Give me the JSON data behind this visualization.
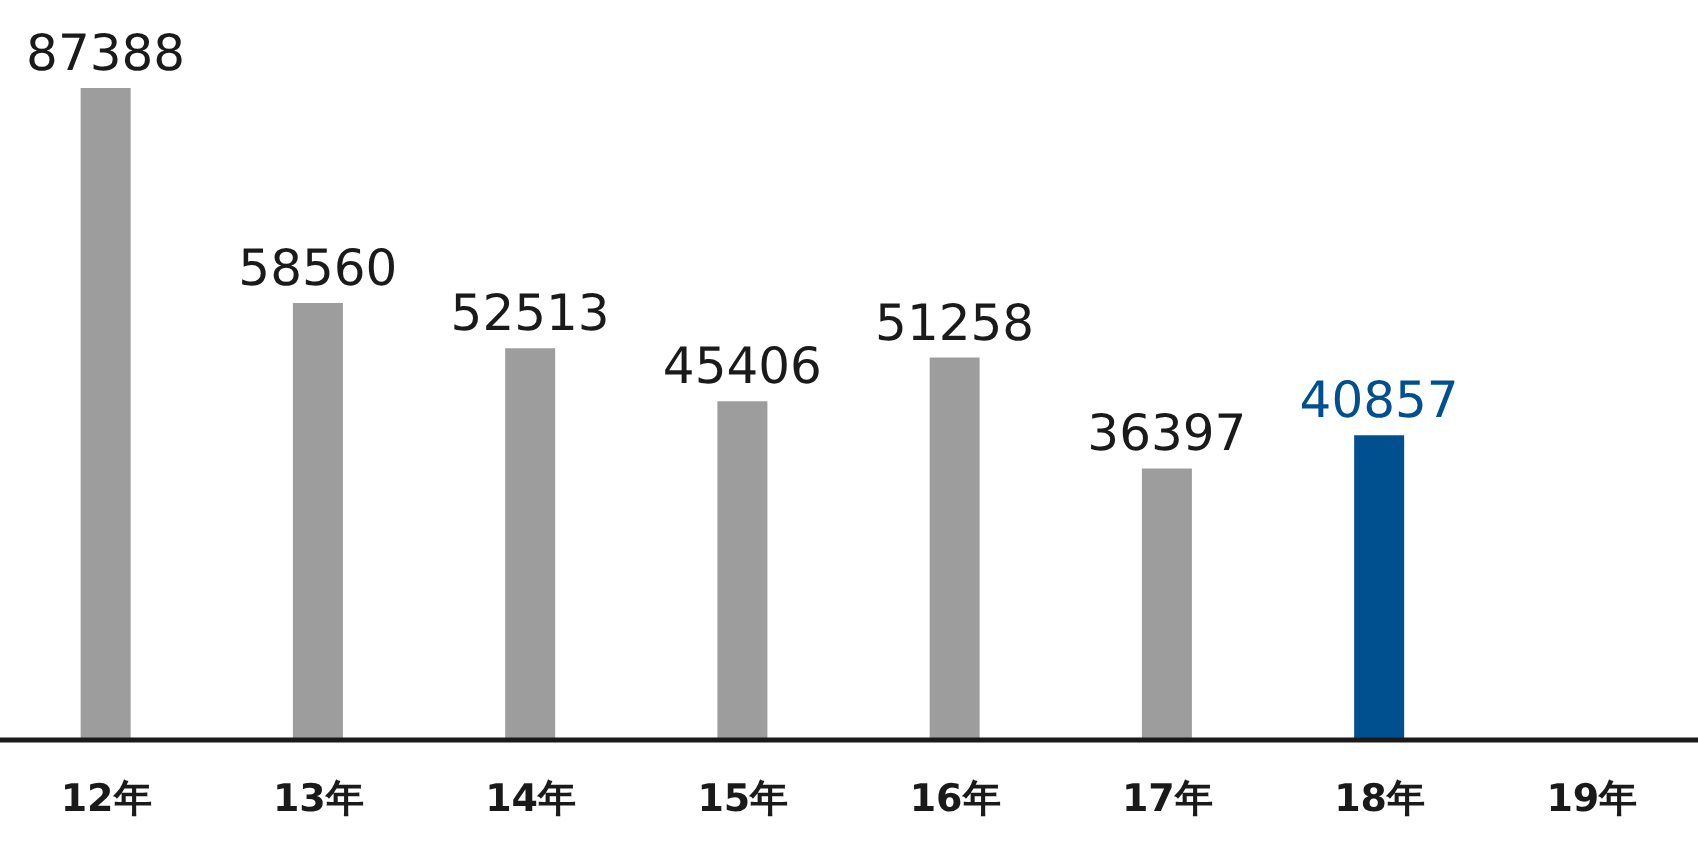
{
  "chart_data": {
    "type": "bar",
    "categories": [
      "12年",
      "13年",
      "14年",
      "15年",
      "16年",
      "17年",
      "18年",
      "19年"
    ],
    "values": [
      87388,
      58560,
      52513,
      45406,
      51258,
      36397,
      40857,
      null
    ],
    "colors": [
      "#9d9d9d",
      "#9d9d9d",
      "#9d9d9d",
      "#9d9d9d",
      "#9d9d9d",
      "#9d9d9d",
      "#00508f",
      "#9d9d9d"
    ],
    "data_labels": true,
    "tick_labels": "x"
  }
}
